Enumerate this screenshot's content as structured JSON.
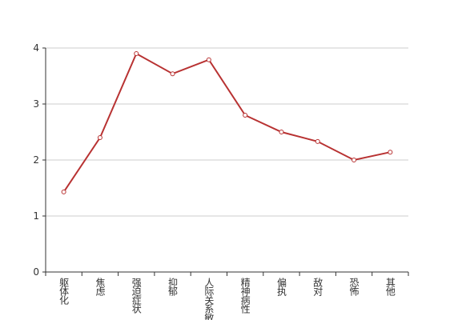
{
  "chart_data": {
    "type": "line",
    "categories": [
      "躯体化",
      "焦虑",
      "强迫症状",
      "抑郁",
      "人际关系敏感",
      "精神病性",
      "偏执",
      "敌对",
      "恐怖",
      "其他"
    ],
    "series": [
      {
        "color": "#b83232",
        "values": [
          1.43,
          2.4,
          3.9,
          3.54,
          3.79,
          2.8,
          2.5,
          2.33,
          2.0,
          2.14
        ]
      }
    ],
    "ylim": [
      0,
      4
    ],
    "yticks": [
      0,
      1,
      2,
      3,
      4
    ],
    "grid": true
  }
}
